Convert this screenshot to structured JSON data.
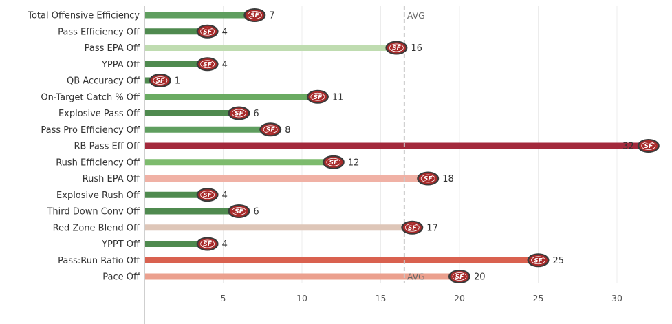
{
  "chart_data": {
    "type": "bar",
    "orientation": "horizontal",
    "categories": [
      "Total Offensive Efficiency",
      "Pass Efficiency Off",
      "Pass EPA Off",
      "YPPA Off",
      "QB Accuracy Off",
      "On-Target Catch % Off",
      "Explosive Pass Off",
      "Pass Pro Efficiency Off",
      "RB Pass Eff Off",
      "Rush Efficiency Off",
      "Rush EPA Off",
      "Explosive Rush Off",
      "Third Down Conv Off",
      "Red Zone Blend Off",
      "YPPT Off",
      "Pass:Run Ratio Off",
      "Pace Off"
    ],
    "values": [
      7,
      4,
      16,
      4,
      1,
      11,
      6,
      8,
      32,
      12,
      18,
      4,
      6,
      17,
      4,
      25,
      20
    ],
    "colors": [
      "#5f9e5f",
      "#4f8a4f",
      "#bfdcb0",
      "#4f8a4f",
      "#4f8a4f",
      "#6aab62",
      "#4f8a4f",
      "#5f9e5f",
      "#a3293c",
      "#7dbb6d",
      "#f0b1a5",
      "#4f8a4f",
      "#4f8a4f",
      "#dec6b8",
      "#4f8a4f",
      "#d9614f",
      "#eba08e"
    ],
    "x_ticks": [
      5,
      10,
      15,
      20,
      25,
      30
    ],
    "xlim": [
      0,
      33
    ],
    "average": 16.5,
    "average_label": "AVG",
    "marker_text": "SF",
    "grid": true
  }
}
